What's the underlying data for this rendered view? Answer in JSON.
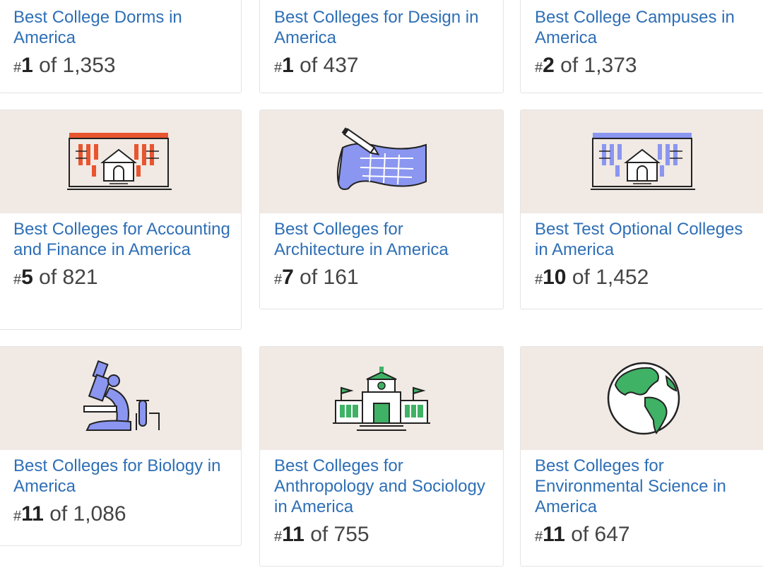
{
  "cards": [
    {
      "title": "Best College Dorms in America",
      "rank_hash": "#",
      "rank": "1",
      "of_text": "of 1,353"
    },
    {
      "title": "Best Colleges for Design in America",
      "rank_hash": "#",
      "rank": "1",
      "of_text": "of 437"
    },
    {
      "title": "Best College Campuses in America",
      "rank_hash": "#",
      "rank": "2",
      "of_text": "of 1,373"
    },
    {
      "title": "Best Colleges for Accounting and Finance in America",
      "rank_hash": "#",
      "rank": "5",
      "of_text": "of 821",
      "icon": "campus-building-orange-icon"
    },
    {
      "title": "Best Colleges for Architecture in America",
      "rank_hash": "#",
      "rank": "7",
      "of_text": "of 161",
      "icon": "blueprint-pencil-icon"
    },
    {
      "title": "Best Test Optional Colleges in America",
      "rank_hash": "#",
      "rank": "10",
      "of_text": "of 1,452",
      "icon": "campus-building-blue-icon"
    },
    {
      "title": "Best Colleges for Biology in America",
      "rank_hash": "#",
      "rank": "11",
      "of_text": "of 1,086",
      "icon": "microscope-icon"
    },
    {
      "title": "Best Colleges for Anthropology and Sociology in America",
      "rank_hash": "#",
      "rank": "11",
      "of_text": "of 755",
      "icon": "government-building-icon"
    },
    {
      "title": "Best Colleges for Environmental Science in America",
      "rank_hash": "#",
      "rank": "11",
      "of_text": "of 647",
      "icon": "globe-icon"
    }
  ],
  "colors": {
    "link": "#2e6fb6",
    "image_bg": "#f0e9e4",
    "orange": "#e8552f",
    "blue": "#8a96f0",
    "green": "#3fb265"
  }
}
